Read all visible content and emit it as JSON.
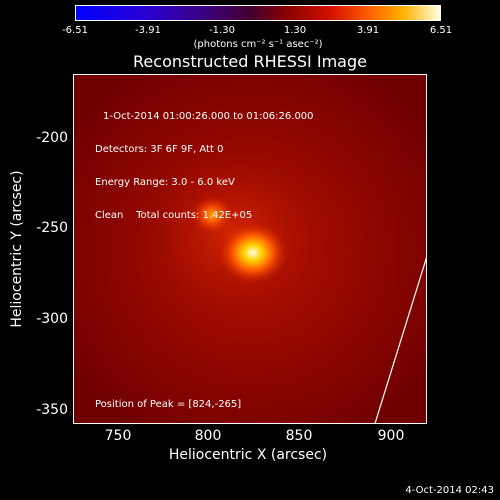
{
  "colorbar": {
    "ticks": [
      "-6.51",
      "-3.91",
      "-1.30",
      "1.30",
      "3.91",
      "6.51"
    ],
    "units": "(photons cm⁻² s⁻¹ asec⁻²)",
    "range": [
      -6.51,
      6.51
    ]
  },
  "title": "Reconstructed RHESSI Image",
  "info": {
    "line1": "1-Oct-2014 01:00:26.000 to 01:06:26.000",
    "line2": "Detectors: 3F 6F 9F, Att 0",
    "line3": "Energy Range: 3.0 - 6.0 keV",
    "line4": "Clean    Total counts: 1.42E+05"
  },
  "peak_label": "Position of Peak = [824,-265]",
  "timestamp": "4-Oct-2014 02:43",
  "chart_data": {
    "type": "heatmap",
    "title": "Reconstructed RHESSI Image",
    "xlabel": "Heliocentric X (arcsec)",
    "ylabel": "Heliocentric Y (arcsec)",
    "xlim": [
      727,
      919
    ],
    "ylim": [
      -356,
      -171
    ],
    "x_ticks": [
      750,
      800,
      850,
      900
    ],
    "y_ticks": [
      -200,
      -250,
      -300,
      -350
    ],
    "sources": [
      {
        "x": 824,
        "y": -265,
        "label": "peak"
      },
      {
        "x": 802,
        "y": -245
      }
    ],
    "limb_line": [
      [
        890,
        -356
      ],
      [
        919,
        -265
      ]
    ]
  }
}
